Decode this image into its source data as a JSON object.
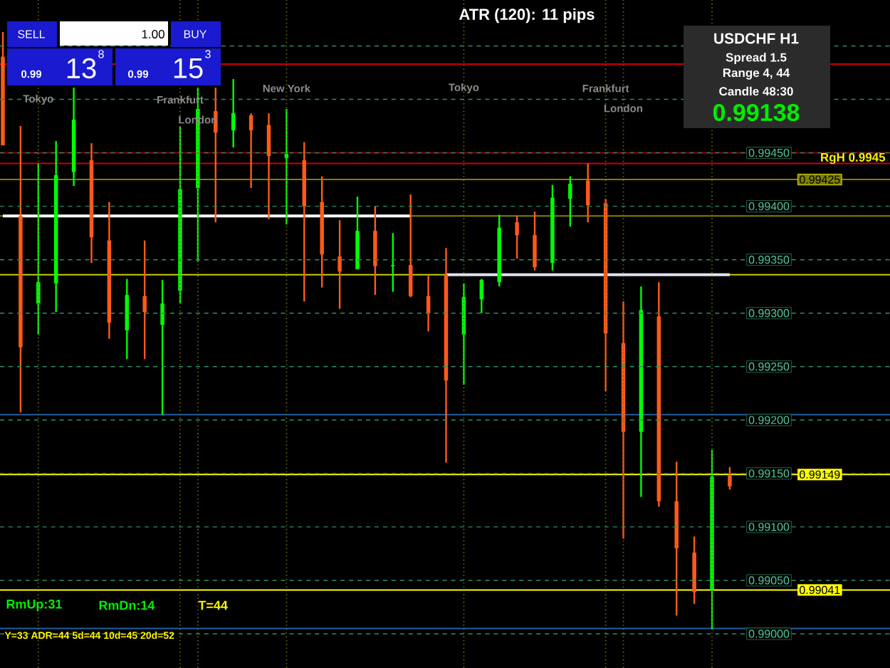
{
  "chart_data": {
    "type": "candlestick",
    "title": "ATR (120): 11 pips",
    "categories": [
      null,
      null,
      null,
      null,
      null,
      null,
      null,
      null,
      null,
      null,
      null,
      null,
      null,
      null,
      null,
      null,
      null,
      null,
      null,
      null,
      null,
      null,
      null,
      null,
      null,
      null,
      null,
      null,
      null,
      null,
      null,
      null,
      null,
      null,
      null,
      null,
      null,
      null,
      null,
      null,
      null,
      null
    ],
    "ohlc": [
      [
        0.9954,
        0.99563,
        0.99457,
        0.99457
      ],
      [
        0.99391,
        0.99475,
        0.99207,
        0.99268
      ],
      [
        0.99309,
        0.9944,
        0.9928,
        0.99329
      ],
      [
        0.99328,
        0.99461,
        0.99301,
        0.99429
      ],
      [
        0.99432,
        0.99511,
        0.99419,
        0.99481
      ],
      [
        0.99443,
        0.99459,
        0.99347,
        0.99371
      ],
      [
        0.99368,
        0.99404,
        0.99276,
        0.99291
      ],
      [
        0.99284,
        0.99332,
        0.99257,
        0.99317
      ],
      [
        0.99316,
        0.99368,
        0.99257,
        0.99301
      ],
      [
        0.99289,
        0.99331,
        0.99205,
        0.99309
      ],
      [
        0.99321,
        0.99475,
        0.99309,
        0.99416
      ],
      [
        0.99417,
        0.99511,
        0.99348,
        0.99491
      ],
      [
        0.99489,
        0.99511,
        0.99385,
        0.99469
      ],
      [
        0.99471,
        0.99519,
        0.99455,
        0.99487
      ],
      [
        0.99485,
        0.99487,
        0.99417,
        0.99471
      ],
      [
        0.99476,
        0.99487,
        0.99388,
        0.99447
      ],
      [
        0.99445,
        0.99491,
        0.99383,
        0.99449
      ],
      [
        0.99443,
        0.9946,
        0.99311,
        0.994
      ],
      [
        0.99404,
        0.99428,
        0.99324,
        0.99355
      ],
      [
        0.99353,
        0.99387,
        0.99304,
        0.99339
      ],
      [
        0.99341,
        0.99409,
        0.99341,
        0.99377
      ],
      [
        0.99377,
        0.994,
        0.99317,
        0.99344
      ],
      [
        0.99344,
        0.99375,
        0.9932,
        0.99345
      ],
      [
        0.99345,
        0.99411,
        0.99315,
        0.99316
      ],
      [
        0.99316,
        0.99335,
        0.99283,
        0.993
      ],
      [
        0.99336,
        0.99361,
        0.9916,
        0.99237
      ],
      [
        0.9928,
        0.99328,
        0.99233,
        0.99315
      ],
      [
        0.99313,
        0.99332,
        0.993,
        0.99331
      ],
      [
        0.99329,
        0.99392,
        0.99325,
        0.9938
      ],
      [
        0.99385,
        0.99391,
        0.99351,
        0.99373
      ],
      [
        0.99373,
        0.99395,
        0.9934,
        0.99343
      ],
      [
        0.99347,
        0.9942,
        0.9934,
        0.99408
      ],
      [
        0.99407,
        0.99428,
        0.99381,
        0.99421
      ],
      [
        0.99424,
        0.9944,
        0.99385,
        0.99401
      ],
      [
        0.99403,
        0.99407,
        0.99227,
        0.99281
      ],
      [
        0.99272,
        0.99311,
        0.99089,
        0.99189
      ],
      [
        0.99189,
        0.99325,
        0.99128,
        0.99303
      ],
      [
        0.99297,
        0.99329,
        0.99119,
        0.99124
      ],
      [
        0.99124,
        0.99161,
        0.99017,
        0.9908
      ],
      [
        0.99076,
        0.99091,
        0.99028,
        0.99039
      ],
      [
        0.99041,
        0.99172,
        0.99004,
        0.99147
      ],
      [
        0.99148,
        0.99156,
        0.99135,
        0.99138
      ]
    ],
    "colors": [
      "#ff5a1a",
      "#ff5a1a",
      "#00ff00",
      "#00ff00",
      "#00ff00",
      "#ff5a1a",
      "#ff5a1a",
      "#00ff00",
      "#ff5a1a",
      "#00ff00",
      "#00ff00",
      "#00ff00",
      "#ff5a1a",
      "#00ff00",
      "#ff5a1a",
      "#ff5a1a",
      "#00ff00",
      "#ff5a1a",
      "#ff5a1a",
      "#ff5a1a",
      "#00ff00",
      "#ff5a1a",
      "#00ff00",
      "#ff5a1a",
      "#ff5a1a",
      "#ff5a1a",
      "#00ff00",
      "#00ff00",
      "#00ff00",
      "#ff5a1a",
      "#ff5a1a",
      "#00ff00",
      "#00ff00",
      "#ff5a1a",
      "#ff5a1a",
      "#ff5a1a",
      "#00ff00",
      "#ff5a1a",
      "#ff5a1a",
      "#ff5a1a",
      "#00ff00",
      "#ff5a1a"
    ],
    "series": [
      {
        "type": "line",
        "color": "#ffffff",
        "values": [
          0.99391,
          0.99391,
          0.99391,
          0.99391,
          0.99391,
          0.99391,
          0.99391,
          0.99391,
          0.99391,
          0.99391,
          0.99391,
          0.99391,
          0.99391,
          0.99391,
          0.99391,
          0.99391,
          0.99391,
          0.99391,
          0.99391,
          0.99391,
          0.99391,
          0.99391,
          0.99391,
          0.99391,
          null,
          null,
          null,
          null,
          null,
          null,
          null,
          null,
          null,
          null,
          null,
          null,
          null,
          null,
          null,
          null,
          null,
          null
        ]
      },
      {
        "type": "line",
        "color": "#e0e0ff",
        "values": [
          null,
          null,
          null,
          null,
          null,
          null,
          null,
          null,
          null,
          null,
          null,
          null,
          null,
          null,
          null,
          null,
          null,
          null,
          null,
          null,
          null,
          null,
          null,
          null,
          null,
          0.99336,
          0.99336,
          0.99336,
          0.99336,
          0.99336,
          0.99336,
          0.99336,
          0.99336,
          0.99336,
          0.99336,
          0.99336,
          0.99336,
          0.99336,
          0.99336,
          0.99336,
          0.99336,
          0.99336
        ]
      }
    ],
    "ylim": [
      0.98968,
      0.99593
    ],
    "yticks": [
      {
        "value": 0.99,
        "label": "0.99000"
      },
      {
        "value": 0.9905,
        "label": "0.99050"
      },
      {
        "value": 0.991,
        "label": "0.99100"
      },
      {
        "value": 0.9915,
        "label": "0.99150"
      },
      {
        "value": 0.992,
        "label": "0.99200"
      },
      {
        "value": 0.9925,
        "label": "0.99250"
      },
      {
        "value": 0.993,
        "label": "0.99300"
      },
      {
        "value": 0.9935,
        "label": "0.99350"
      },
      {
        "value": 0.994,
        "label": "0.99400"
      },
      {
        "value": 0.9945,
        "label": "0.99450"
      },
      {
        "value": 0.995,
        "label": null
      },
      {
        "value": 0.9955,
        "label": null
      }
    ],
    "grid": true,
    "ref_lines": [
      {
        "axis": "y",
        "value": 0.99533,
        "color": "#cc0000"
      },
      {
        "axis": "y",
        "value": 0.9945,
        "label": "RgH 0.9945",
        "color": "#8b0000"
      },
      {
        "axis": "y",
        "value": 0.9944,
        "color": "#cc0000"
      },
      {
        "axis": "y",
        "value": 0.99425,
        "label": "0.99425",
        "color": "#808000"
      },
      {
        "axis": "y",
        "value": 0.99391,
        "color": "#808000"
      },
      {
        "axis": "y",
        "value": 0.99336,
        "color": "#cccc00"
      },
      {
        "axis": "y",
        "value": 0.99205,
        "color": "#1f5f9f"
      },
      {
        "axis": "y",
        "value": 0.99149,
        "label": "0.99149",
        "color": "#ffff00"
      },
      {
        "axis": "y",
        "value": 0.99041,
        "label": "0.99041",
        "color": "#ffff00"
      },
      {
        "axis": "y",
        "value": 0.99005,
        "color": "#1f5f9f"
      }
    ],
    "annotations": [
      "USDCHF H1",
      "Spread 1.5",
      "Range 4, 44",
      "Candle 48:30",
      "0.99138",
      "SELL",
      "1.00",
      "BUY",
      "0.99",
      "13",
      "8",
      "0.99",
      "15",
      "3",
      "RmUp:31",
      "RmDn:14",
      "T=44",
      "Y=33 ADR=44 5d=44 10d=45 20d=52",
      "Tokyo",
      "Frankfurt",
      "London",
      "New York",
      "Tokyo",
      "Frankfurt",
      "London"
    ]
  }
}
